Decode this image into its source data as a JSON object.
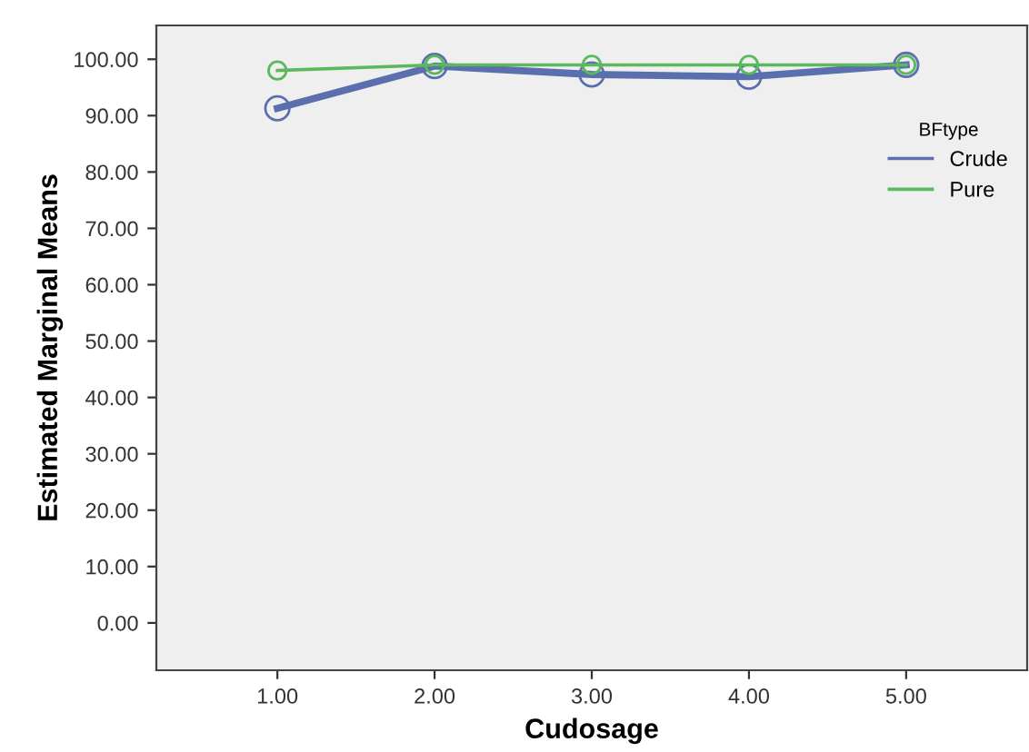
{
  "chart_data": {
    "type": "line",
    "xlabel": "Cudosage",
    "ylabel": "Estimated Marginal Means",
    "legend_title": "BFtype",
    "x": [
      1,
      2,
      3,
      4,
      5
    ],
    "series": [
      {
        "name": "Crude",
        "color": "#5b6fae",
        "values": [
          91.3,
          98.8,
          97.3,
          96.9,
          99.0
        ]
      },
      {
        "name": "Pure",
        "color": "#5cb85c",
        "values": [
          98.0,
          99.0,
          99.0,
          99.0,
          99.0
        ]
      }
    ],
    "xlim": [
      0.23,
      5.77
    ],
    "ylim": [
      -8.4,
      106
    ],
    "xticks": [
      {
        "value": 1,
        "label": "1.00"
      },
      {
        "value": 2,
        "label": "2.00"
      },
      {
        "value": 3,
        "label": "3.00"
      },
      {
        "value": 4,
        "label": "4.00"
      },
      {
        "value": 5,
        "label": "5.00"
      }
    ],
    "yticks": [
      {
        "value": 0,
        "label": "0.00"
      },
      {
        "value": 10,
        "label": "10.00"
      },
      {
        "value": 20,
        "label": "20.00"
      },
      {
        "value": 30,
        "label": "30.00"
      },
      {
        "value": 40,
        "label": "40.00"
      },
      {
        "value": 50,
        "label": "50.00"
      },
      {
        "value": 60,
        "label": "60.00"
      },
      {
        "value": 70,
        "label": "70.00"
      },
      {
        "value": 80,
        "label": "80.00"
      },
      {
        "value": 90,
        "label": "90.00"
      },
      {
        "value": 100,
        "label": "100.00"
      }
    ],
    "marker": "circle",
    "line_style": "solid",
    "legend": "top right",
    "grid": false
  }
}
